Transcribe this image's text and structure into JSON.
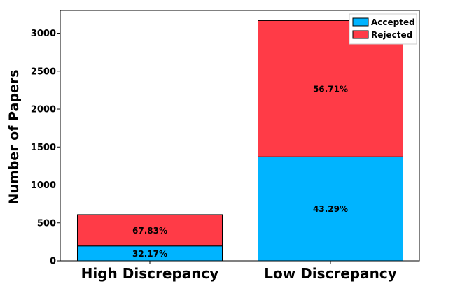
{
  "chart_data": {
    "type": "bar",
    "stacked": true,
    "categories": [
      "High Discrepancy",
      "Low Discrepancy"
    ],
    "ylabel": "Number of Papers",
    "xlabel": "",
    "ylim": [
      0,
      3300
    ],
    "yticks": [
      0,
      500,
      1000,
      1500,
      2000,
      2500,
      3000
    ],
    "legend_position": "top-right",
    "grid": false,
    "series": [
      {
        "name": "Accepted",
        "color": "#00b4ff",
        "values": [
          196,
          1371
        ],
        "labels": [
          "32.17%",
          "43.29%"
        ]
      },
      {
        "name": "Rejected",
        "color": "#ff3b47",
        "values": [
          413,
          1796
        ],
        "labels": [
          "67.83%",
          "56.71%"
        ]
      }
    ]
  }
}
